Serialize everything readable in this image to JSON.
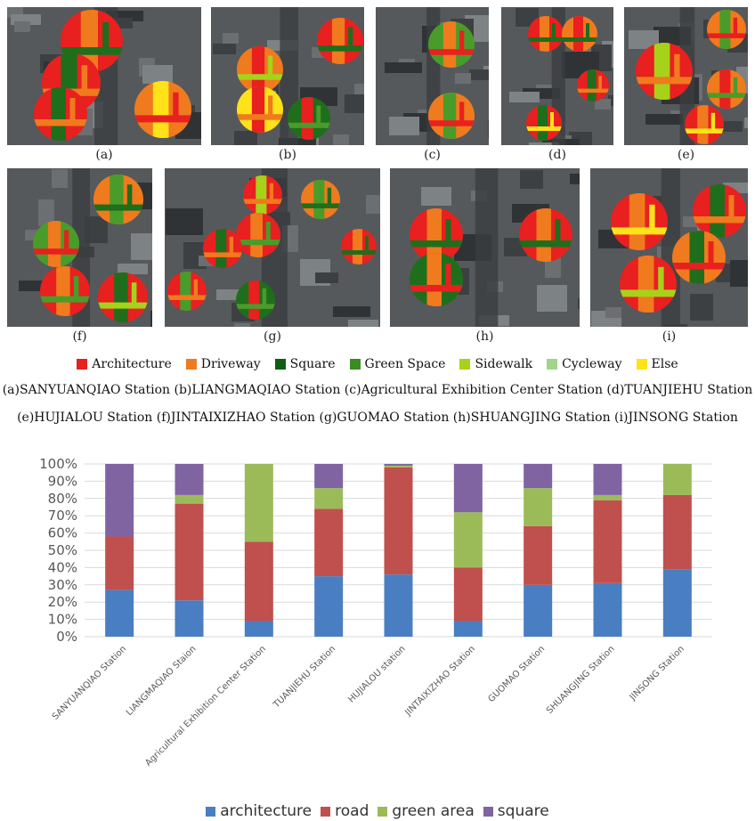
{
  "panels": [
    {
      "label": "(a)",
      "x": 8,
      "y": 8,
      "w": 218,
      "h": 155,
      "circles": [
        [
          95,
          38,
          35,
          [
            "#e8201f",
            "#f07a1e",
            "#1f6e1c"
          ]
        ],
        [
          72,
          85,
          33,
          [
            "#e8201f",
            "#1f6e1c",
            "#f07a1e"
          ]
        ],
        [
          60,
          120,
          30,
          [
            "#e8201f",
            "#1f6e1c",
            "#f07a1e"
          ]
        ],
        [
          175,
          115,
          32,
          [
            "#f07a1e",
            "#ffe21a",
            "#e8201f"
          ]
        ]
      ]
    },
    {
      "label": "(b)",
      "x": 237,
      "y": 8,
      "w": 172,
      "h": 155,
      "circles": [
        [
          145,
          38,
          26,
          [
            "#e8201f",
            "#f07a1e",
            "#1f6e1c"
          ]
        ],
        [
          55,
          70,
          26,
          [
            "#f07a1e",
            "#e8201f",
            "#a6d21a"
          ]
        ],
        [
          55,
          115,
          26,
          [
            "#ffe21a",
            "#e8201f",
            "#f07a1e"
          ]
        ],
        [
          110,
          125,
          24,
          [
            "#1f6e1c",
            "#e8201f",
            "#4a9c2a"
          ]
        ]
      ]
    },
    {
      "label": "(c)",
      "x": 422,
      "y": 8,
      "w": 127,
      "h": 155,
      "circles": [
        [
          85,
          42,
          26,
          [
            "#4a9c2a",
            "#f07a1e",
            "#e8201f"
          ]
        ],
        [
          85,
          122,
          26,
          [
            "#f07a1e",
            "#4a9c2a",
            "#e8201f"
          ]
        ]
      ]
    },
    {
      "label": "(d)",
      "x": 563,
      "y": 8,
      "w": 126,
      "h": 155,
      "circles": [
        [
          50,
          30,
          20,
          [
            "#e8201f",
            "#f07a1e",
            "#1f6e1c"
          ]
        ],
        [
          88,
          30,
          20,
          [
            "#f07a1e",
            "#e8201f",
            "#1f6e1c"
          ]
        ],
        [
          103,
          88,
          18,
          [
            "#e8201f",
            "#1f6e1c",
            "#f07a1e"
          ]
        ],
        [
          48,
          130,
          20,
          [
            "#e8201f",
            "#1f6e1c",
            "#ffe21a"
          ]
        ]
      ]
    },
    {
      "label": "(e)",
      "x": 701,
      "y": 8,
      "w": 139,
      "h": 155,
      "circles": [
        [
          115,
          25,
          22,
          [
            "#f07a1e",
            "#4a9c2a",
            "#e8201f"
          ]
        ],
        [
          45,
          72,
          32,
          [
            "#e8201f",
            "#a6d21a",
            "#f07a1e"
          ]
        ],
        [
          115,
          92,
          22,
          [
            "#f07a1e",
            "#e8201f",
            "#4a9c2a"
          ]
        ],
        [
          90,
          132,
          22,
          [
            "#e8201f",
            "#f07a1e",
            "#ffe21a"
          ]
        ]
      ]
    },
    {
      "label": "(f)",
      "x": 8,
      "y": 189,
      "w": 163,
      "h": 178,
      "circles": [
        [
          125,
          35,
          28,
          [
            "#f07a1e",
            "#4a9c2a",
            "#1f6e1c"
          ]
        ],
        [
          55,
          85,
          26,
          [
            "#4a9c2a",
            "#f07a1e",
            "#e8201f"
          ]
        ],
        [
          65,
          138,
          28,
          [
            "#e8201f",
            "#f07a1e",
            "#4a9c2a"
          ]
        ],
        [
          130,
          145,
          28,
          [
            "#e8201f",
            "#1f6e1c",
            "#a6d21a"
          ]
        ]
      ]
    },
    {
      "label": "(g)",
      "x": 185,
      "y": 189,
      "w": 242,
      "h": 178,
      "circles": [
        [
          110,
          30,
          22,
          [
            "#e8201f",
            "#a6d21a",
            "#f07a1e"
          ]
        ],
        [
          105,
          75,
          25,
          [
            "#e8201f",
            "#f07a1e",
            "#4a9c2a"
          ]
        ],
        [
          65,
          90,
          22,
          [
            "#e8201f",
            "#1f6e1c",
            "#f07a1e"
          ]
        ],
        [
          175,
          35,
          22,
          [
            "#f07a1e",
            "#4a9c2a",
            "#1f6e1c"
          ]
        ],
        [
          218,
          88,
          20,
          [
            "#e8201f",
            "#f07a1e",
            "#1f6e1c"
          ]
        ],
        [
          25,
          138,
          22,
          [
            "#e8201f",
            "#4a9c2a",
            "#f07a1e"
          ]
        ],
        [
          102,
          148,
          22,
          [
            "#1f6e1c",
            "#e8201f",
            "#4a9c2a"
          ]
        ]
      ]
    },
    {
      "label": "(h)",
      "x": 438,
      "y": 189,
      "w": 213,
      "h": 178,
      "circles": [
        [
          52,
          75,
          30,
          [
            "#e8201f",
            "#f07a1e",
            "#1f6e1c"
          ]
        ],
        [
          52,
          125,
          30,
          [
            "#1f6e1c",
            "#f07a1e",
            "#e8201f"
          ]
        ],
        [
          175,
          75,
          30,
          [
            "#e8201f",
            "#f07a1e",
            "#1f6e1c"
          ]
        ]
      ]
    },
    {
      "label": "(i)",
      "x": 663,
      "y": 189,
      "w": 177,
      "h": 178,
      "circles": [
        [
          55,
          60,
          32,
          [
            "#e8201f",
            "#f07a1e",
            "#ffe21a"
          ]
        ],
        [
          145,
          48,
          30,
          [
            "#e8201f",
            "#1f6e1c",
            "#f07a1e"
          ]
        ],
        [
          122,
          100,
          30,
          [
            "#f07a1e",
            "#1f6e1c",
            "#e8201f"
          ]
        ],
        [
          65,
          130,
          32,
          [
            "#e8201f",
            "#f07a1e",
            "#a6d21a"
          ]
        ]
      ]
    }
  ],
  "class_legend": [
    {
      "label": "Architecture",
      "color": "#e8201f"
    },
    {
      "label": "Driveway",
      "color": "#f07a1e"
    },
    {
      "label": "Square",
      "color": "#0e5e14"
    },
    {
      "label": "Green Space",
      "color": "#3d8c22"
    },
    {
      "label": "Sidewalk",
      "color": "#a6d21a"
    },
    {
      "label": "Cycleway",
      "color": "#9fd68a"
    },
    {
      "label": "Else",
      "color": "#ffe21a"
    }
  ],
  "caption": {
    "line1": "(a)SANYUANQIAO Station  (b)LIANGMAQIAO Station (c)Agricultural Exhibition Center Station (d)TUANJIEHU Station",
    "line2": "(e)HUJIALOU Station  (f)JINTAIXIZHAO Station  (g)GUOMAO Station  (h)SHUANGJING Station (i)JINSONG Station"
  },
  "chart_data": {
    "type": "bar",
    "stacked": true,
    "percent": true,
    "categories": [
      "SANYUANQIAO Station",
      "LIANGMAQIAO Staion",
      "Agricultural Exhibition Center Station",
      "TUANJIEHU Station",
      "HUJIALOU station",
      "JINTAIXIZHAO Station",
      "GUOMAO Station",
      "SHUANGJING Station",
      "JINSONG Station"
    ],
    "series": [
      {
        "name": "architecture",
        "color": "#4a7ec2",
        "values": [
          27,
          21,
          9,
          35,
          36,
          9,
          30,
          31,
          39
        ]
      },
      {
        "name": "road",
        "color": "#c0504d",
        "values": [
          31,
          56,
          46,
          39,
          62,
          31,
          34,
          48,
          43
        ]
      },
      {
        "name": "green area",
        "color": "#9bbb59",
        "values": [
          0,
          5,
          45,
          12,
          1,
          32,
          22,
          3,
          18
        ]
      },
      {
        "name": "square",
        "color": "#8064a2",
        "values": [
          42,
          18,
          0,
          14,
          1,
          28,
          14,
          18,
          0
        ]
      }
    ],
    "yticks": [
      "0%",
      "10%",
      "20%",
      "30%",
      "40%",
      "50%",
      "60%",
      "70%",
      "80%",
      "90%",
      "100%"
    ],
    "ylim": [
      0,
      100
    ],
    "grid": true,
    "legend": "bottom"
  }
}
